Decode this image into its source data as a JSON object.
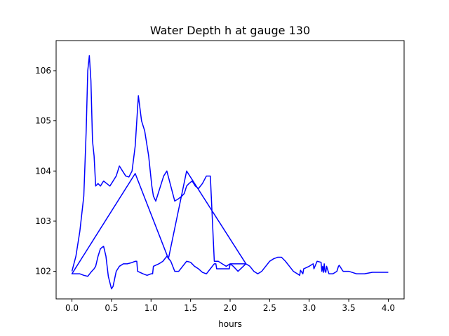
{
  "chart_data": {
    "type": "line",
    "title": "Water Depth h at gauge 130",
    "xlabel": "hours",
    "ylabel": "",
    "xlim": [
      -0.2,
      4.2
    ],
    "ylim": [
      101.45,
      106.6
    ],
    "xticks": [
      0.0,
      0.5,
      1.0,
      1.5,
      2.0,
      2.5,
      3.0,
      3.5,
      4.0
    ],
    "xtick_labels": [
      "0.0",
      "0.5",
      "1.0",
      "1.5",
      "2.0",
      "2.5",
      "3.0",
      "3.5",
      "4.0"
    ],
    "yticks": [
      102,
      103,
      104,
      105,
      106
    ],
    "ytick_labels": [
      "102",
      "103",
      "104",
      "105",
      "106"
    ],
    "grid": false,
    "legend": "none",
    "colors": {
      "series": "#0000ff",
      "axes": "#000000",
      "background": "#ffffff"
    },
    "series": [
      {
        "name": "",
        "x": [
          0.0,
          0.05,
          0.1,
          0.15,
          0.18,
          0.2,
          0.22,
          0.24,
          0.26,
          0.28,
          0.3,
          0.33,
          0.36,
          0.4,
          0.44,
          0.48,
          0.52,
          0.56,
          0.6,
          0.64,
          0.68,
          0.72,
          0.76,
          0.8,
          0.84,
          0.88,
          0.92,
          0.95,
          0.97,
          0.99,
          1.01,
          1.03,
          1.06,
          1.1,
          1.13,
          1.16,
          1.2,
          1.25,
          1.3,
          1.35,
          1.39,
          1.42,
          1.45,
          1.48,
          1.52,
          1.56,
          1.6,
          1.65,
          1.7,
          1.75,
          1.8,
          1.85,
          1.9,
          1.95,
          2.0,
          2.04,
          2.07,
          2.1,
          2.2,
          1.45,
          1.22,
          0.8,
          0.0,
          0.0,
          0.1,
          0.15,
          0.2,
          0.25,
          0.28,
          0.3,
          0.33,
          0.36,
          0.4,
          0.43,
          0.46,
          0.5,
          0.52,
          0.56,
          0.6,
          0.65,
          0.7,
          0.75,
          0.8,
          0.82,
          0.83,
          0.9,
          0.95,
          1.0,
          1.02,
          1.03,
          1.1,
          1.15,
          1.2,
          1.25,
          1.3,
          1.35,
          1.4,
          1.45,
          1.5,
          1.55,
          1.6,
          1.65,
          1.7,
          1.75,
          1.8,
          1.82,
          1.83,
          1.9,
          1.95,
          1.99,
          2.0,
          2.05,
          2.1,
          2.15,
          2.2,
          2.25,
          2.3,
          2.35,
          2.4,
          2.45,
          2.5,
          2.55,
          2.6,
          2.65,
          2.7,
          2.75,
          2.8,
          2.85,
          2.88,
          2.89,
          2.92,
          2.93,
          3.0,
          3.05,
          3.06,
          3.1,
          3.15,
          3.16,
          3.17,
          3.18,
          3.19,
          3.2,
          3.21,
          3.22,
          3.25,
          3.3,
          3.35,
          3.37,
          3.38,
          3.42,
          3.43,
          3.5,
          3.6,
          3.7,
          3.8,
          3.9,
          4.0
        ],
        "y": [
          102.0,
          102.3,
          102.8,
          103.5,
          104.8,
          106.0,
          106.3,
          105.8,
          104.6,
          104.3,
          103.7,
          103.75,
          103.7,
          103.8,
          103.75,
          103.7,
          103.8,
          103.9,
          104.1,
          104.0,
          103.9,
          103.88,
          104.0,
          104.5,
          105.5,
          105.0,
          104.8,
          104.5,
          104.3,
          104.0,
          103.7,
          103.5,
          103.4,
          103.6,
          103.75,
          103.9,
          104.0,
          103.7,
          103.4,
          103.45,
          103.5,
          103.55,
          103.7,
          103.75,
          103.8,
          103.7,
          103.65,
          103.75,
          103.9,
          103.9,
          102.2,
          102.2,
          102.15,
          102.1,
          102.15,
          102.1,
          102.05,
          102.0,
          102.15,
          104.0,
          102.25,
          103.95,
          101.95,
          101.95,
          101.95,
          101.92,
          101.9,
          102.0,
          102.05,
          102.1,
          102.3,
          102.45,
          102.5,
          102.3,
          101.9,
          101.65,
          101.7,
          102.0,
          102.1,
          102.15,
          102.15,
          102.17,
          102.2,
          102.2,
          102.0,
          101.95,
          101.92,
          101.95,
          101.95,
          102.1,
          102.15,
          102.2,
          102.3,
          102.2,
          102.0,
          102.0,
          102.1,
          102.2,
          102.18,
          102.1,
          102.05,
          101.98,
          101.95,
          102.05,
          102.15,
          102.15,
          102.05,
          102.05,
          102.05,
          102.05,
          102.15,
          102.15,
          102.15,
          102.15,
          102.15,
          102.1,
          102.0,
          101.95,
          102.0,
          102.1,
          102.2,
          102.25,
          102.28,
          102.28,
          102.2,
          102.1,
          102.0,
          101.95,
          101.92,
          102.02,
          101.95,
          102.05,
          102.1,
          102.15,
          102.05,
          102.2,
          102.18,
          102.0,
          102.1,
          101.98,
          102.15,
          102.0,
          101.98,
          102.1,
          101.95,
          101.95,
          102.0,
          102.1,
          102.12,
          102.02,
          102.0,
          102.0,
          101.95,
          101.95,
          101.98,
          101.98,
          101.98
        ]
      }
    ]
  }
}
